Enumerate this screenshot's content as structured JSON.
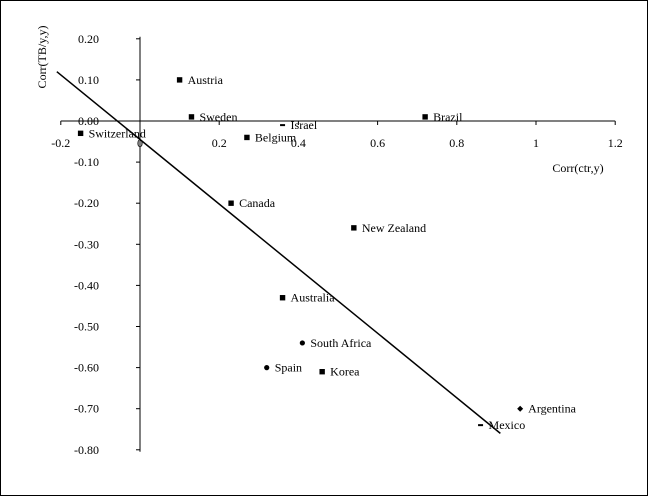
{
  "chart_data": {
    "type": "scatter",
    "title": "",
    "xlabel": "Corr(ctr,y)",
    "ylabel": "Corr(TB/y,y)",
    "xlim": [
      -0.2,
      1.2
    ],
    "ylim": [
      -0.8,
      0.2
    ],
    "x_ticks": [
      "-0.2",
      "0",
      "0.2",
      "0.4",
      "0.6",
      "0.8",
      "1",
      "1.2"
    ],
    "y_ticks": [
      "0.20",
      "0.10",
      "0.00",
      "-0.10",
      "-0.20",
      "-0.30",
      "-0.40",
      "-0.50",
      "-0.60",
      "-0.70",
      "-0.80"
    ],
    "grid": false,
    "legend": "none",
    "points": [
      {
        "label": "Austria",
        "x": 0.1,
        "y": 0.1,
        "marker": "square"
      },
      {
        "label": "Sweden",
        "x": 0.13,
        "y": 0.01,
        "marker": "square"
      },
      {
        "label": "Switzerland",
        "x": -0.15,
        "y": -0.03,
        "marker": "square"
      },
      {
        "label": "Belgium",
        "x": 0.27,
        "y": -0.04,
        "marker": "square"
      },
      {
        "label": "Israel",
        "x": 0.36,
        "y": -0.01,
        "marker": "dash"
      },
      {
        "label": "Brazil",
        "x": 0.72,
        "y": 0.01,
        "marker": "square"
      },
      {
        "label": "Canada",
        "x": 0.23,
        "y": -0.2,
        "marker": "square"
      },
      {
        "label": "New Zealand",
        "x": 0.54,
        "y": -0.26,
        "marker": "square"
      },
      {
        "label": "Australia",
        "x": 0.36,
        "y": -0.43,
        "marker": "square"
      },
      {
        "label": "South Africa",
        "x": 0.41,
        "y": -0.54,
        "marker": "circle"
      },
      {
        "label": "Spain",
        "x": 0.32,
        "y": -0.6,
        "marker": "circle"
      },
      {
        "label": "Korea",
        "x": 0.46,
        "y": -0.61,
        "marker": "square"
      },
      {
        "label": "Argentina",
        "x": 0.96,
        "y": -0.7,
        "marker": "diamond"
      },
      {
        "label": "Mexico",
        "x": 0.86,
        "y": -0.74,
        "marker": "dash"
      }
    ],
    "trendline": {
      "x": [
        -0.21,
        0.91
      ],
      "y": [
        0.12,
        -0.76
      ]
    }
  }
}
